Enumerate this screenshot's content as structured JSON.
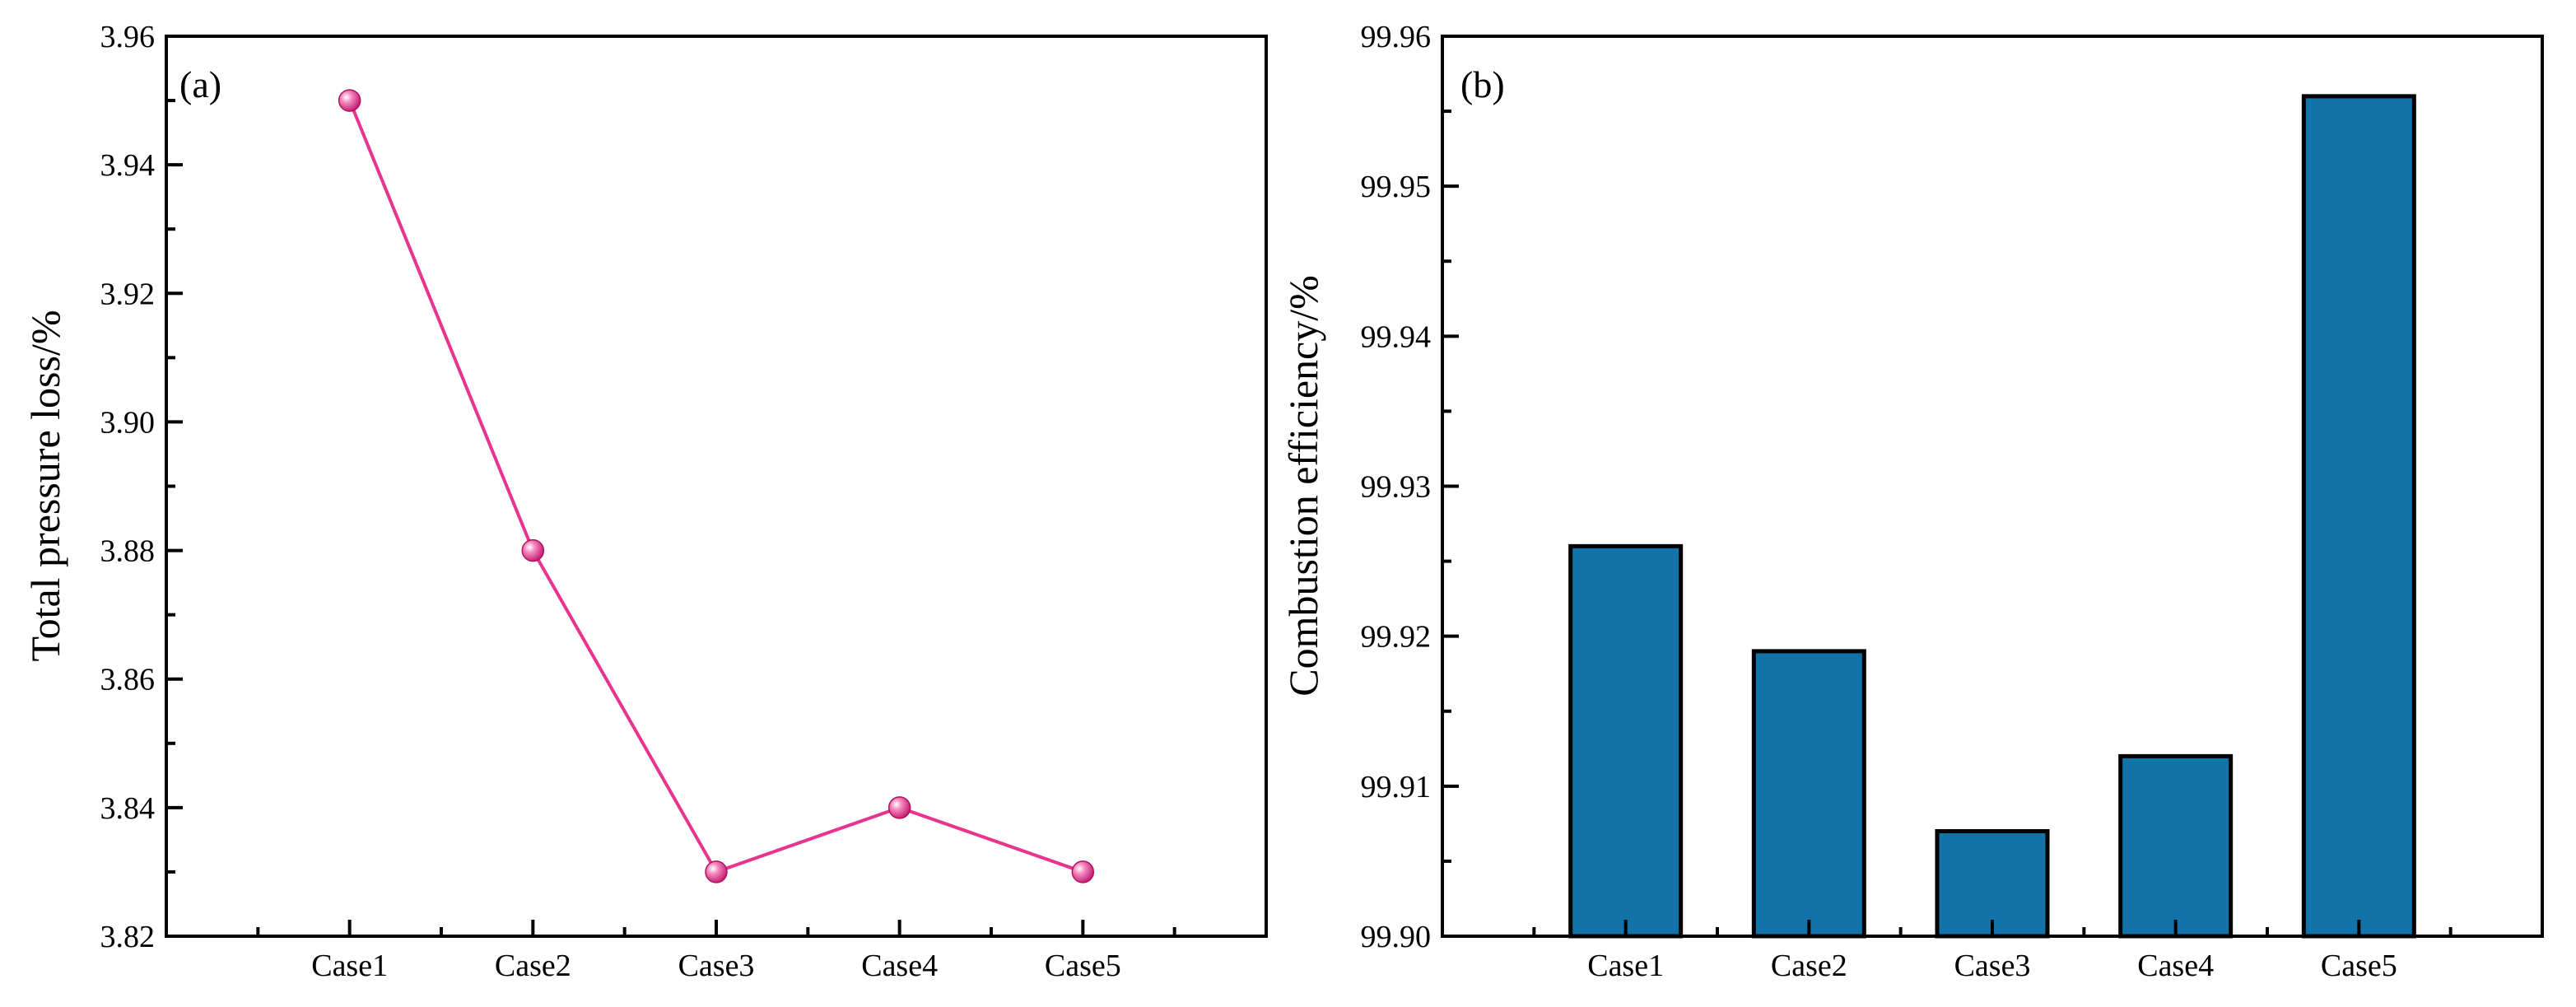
{
  "chart_data": [
    {
      "type": "line",
      "panel_label": "(a)",
      "categories": [
        "Case1",
        "Case2",
        "Case3",
        "Case4",
        "Case5"
      ],
      "values": [
        3.95,
        3.88,
        3.83,
        3.84,
        3.83
      ],
      "ylabel": "Total pressure loss/%",
      "ylim": [
        3.82,
        3.96
      ],
      "yticks": [
        "3.82",
        "3.84",
        "3.86",
        "3.88",
        "3.90",
        "3.92",
        "3.94",
        "3.96"
      ],
      "line_color": "#e8338f",
      "marker_color": "#e8338f"
    },
    {
      "type": "bar",
      "panel_label": "(b)",
      "categories": [
        "Case1",
        "Case2",
        "Case3",
        "Case4",
        "Case5"
      ],
      "values": [
        99.926,
        99.919,
        99.907,
        99.912,
        99.956
      ],
      "ylabel": "Combustion efficiency/%",
      "ylim": [
        99.9,
        99.96
      ],
      "yticks": [
        "99.90",
        "99.91",
        "99.92",
        "99.93",
        "99.94",
        "99.95",
        "99.96"
      ],
      "bar_color": "#1173a8"
    }
  ]
}
